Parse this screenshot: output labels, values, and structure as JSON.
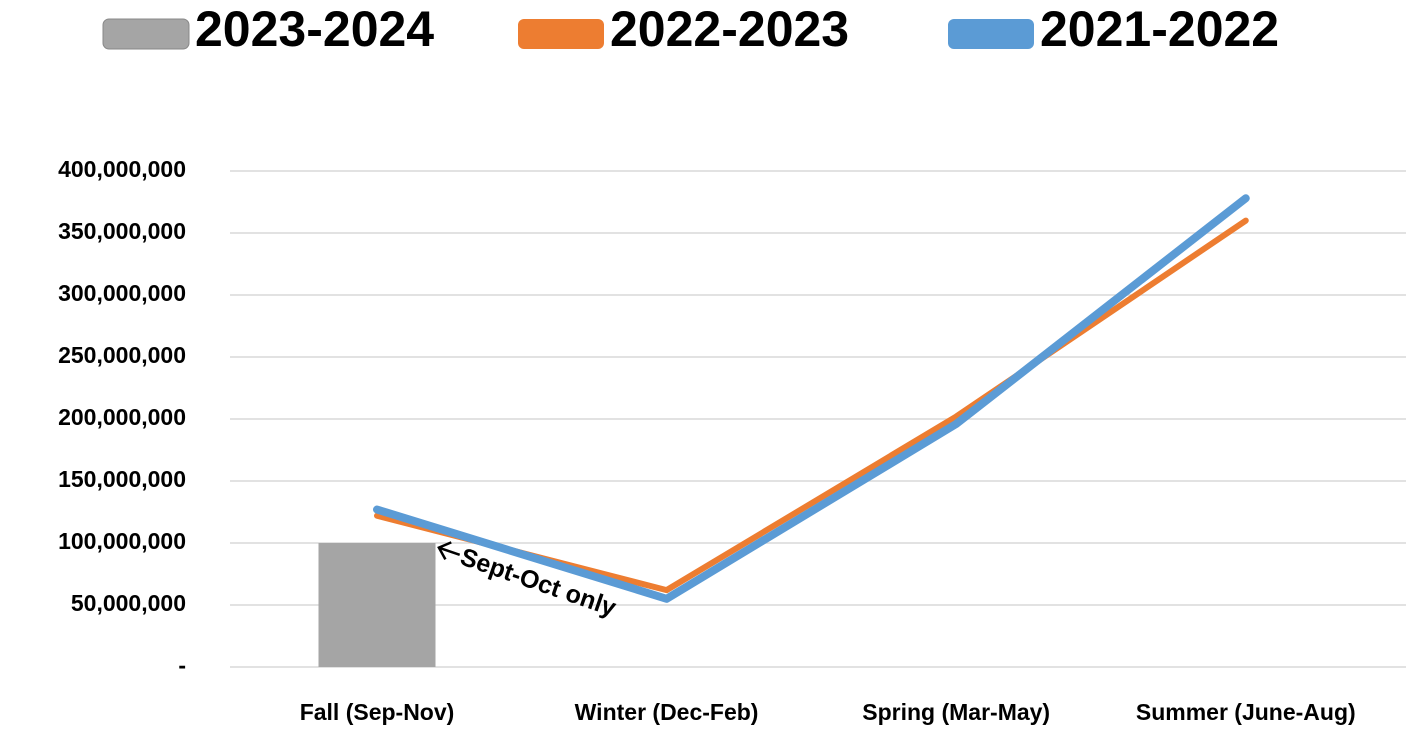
{
  "chart_data": {
    "type": "combo",
    "categories": [
      "Fall (Sep-Nov)",
      "Winter (Dec-Feb)",
      "Spring (Mar-May)",
      "Summer (June-Aug)"
    ],
    "series": [
      {
        "name": "2023-2024",
        "type": "bar",
        "color": "#a5a5a5",
        "values": [
          100000000,
          null,
          null,
          null
        ]
      },
      {
        "name": "2022-2023",
        "type": "line",
        "color": "#ed7d31",
        "values": [
          122000000,
          62000000,
          202000000,
          360000000
        ]
      },
      {
        "name": "2021-2022",
        "type": "line",
        "color": "#5b9bd5",
        "values": [
          127000000,
          55000000,
          196000000,
          378000000
        ]
      }
    ],
    "ylim": [
      0,
      400000000
    ],
    "yticks": [
      {
        "value": 0,
        "label": "-"
      },
      {
        "value": 50000000,
        "label": "50,000,000"
      },
      {
        "value": 100000000,
        "label": "100,000,000"
      },
      {
        "value": 150000000,
        "label": "150,000,000"
      },
      {
        "value": 200000000,
        "label": "200,000,000"
      },
      {
        "value": 250000000,
        "label": "250,000,000"
      },
      {
        "value": 300000000,
        "label": "300,000,000"
      },
      {
        "value": 350000000,
        "label": "350,000,000"
      },
      {
        "value": 400000000,
        "label": "400,000,000"
      }
    ],
    "grid": true,
    "legend": "top",
    "annotation": "Sept-Oct only"
  }
}
